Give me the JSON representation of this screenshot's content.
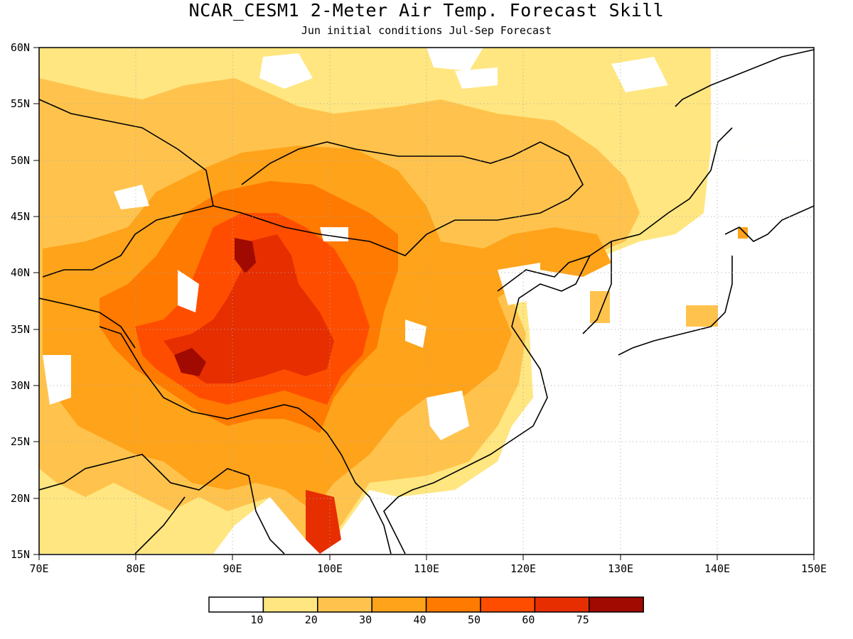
{
  "title": "NCAR_CESM1 2-Meter Air Temp. Forecast Skill",
  "subtitle": "Jun initial conditions  Jul-Sep Forecast",
  "lat_labels": [
    "60N",
    "55N",
    "50N",
    "45N",
    "40N",
    "35N",
    "30N",
    "25N",
    "20N",
    "15N"
  ],
  "lon_labels": [
    "70E",
    "80E",
    "90E",
    "100E",
    "110E",
    "120E",
    "130E",
    "140E",
    "150E"
  ],
  "colorbar": {
    "tick_labels": [
      "10",
      "20",
      "30",
      "40",
      "50",
      "60",
      "75"
    ],
    "colors": [
      "#ffffff",
      "#ffe680",
      "#ffc34d",
      "#ffa31a",
      "#ff7a00",
      "#ff4d00",
      "#e62e00",
      "#a00a00"
    ]
  },
  "map": {
    "lon_range": [
      70,
      150
    ],
    "lat_range": [
      15,
      60
    ],
    "variable": "2-Meter Air Temp. Forecast Skill"
  }
}
